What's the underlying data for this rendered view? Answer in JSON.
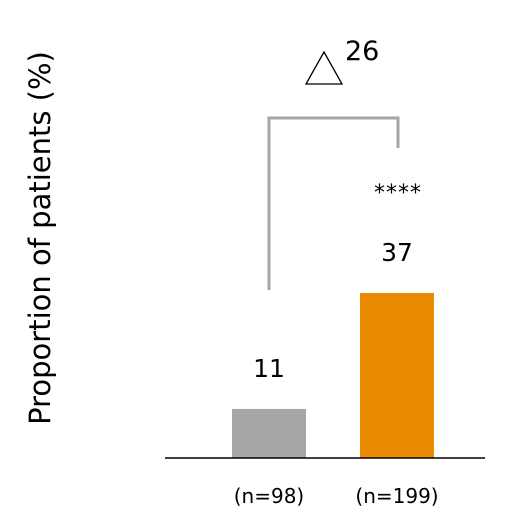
{
  "chart_data": {
    "type": "bar",
    "ylabel": "Proportion of patients (%)",
    "xlabel": "",
    "title": "",
    "categories": [
      "(n=98)",
      "(n=199)"
    ],
    "values": [
      11,
      37
    ],
    "data_labels": [
      "11",
      "37"
    ],
    "colors": [
      "#a6a6a6",
      "#e98a00"
    ],
    "bracket_color": "#a6a6a6",
    "significance": "****",
    "delta_label": "26",
    "ylim": [
      0,
      55
    ],
    "grid": false,
    "legend": "none"
  }
}
